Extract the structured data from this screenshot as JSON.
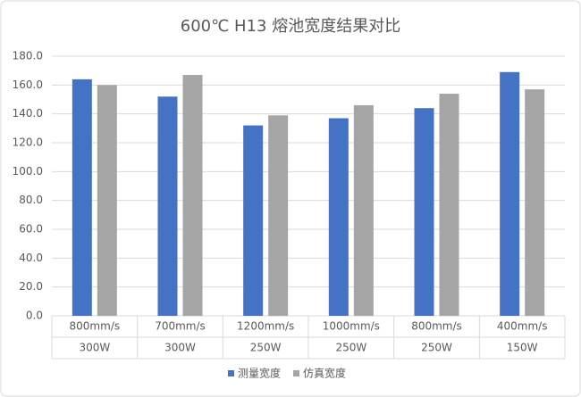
{
  "chart_data": {
    "type": "bar",
    "title": "600℃ H13 熔池宽度结果对比",
    "categories": [
      [
        "800mm/s",
        "300W"
      ],
      [
        "700mm/s",
        "300W"
      ],
      [
        "1200mm/s",
        "250W"
      ],
      [
        "1000mm/s",
        "250W"
      ],
      [
        "800mm/s",
        "250W"
      ],
      [
        "400mm/s",
        "150W"
      ]
    ],
    "series": [
      {
        "name": "测量宽度",
        "color": "#4472c4",
        "values": [
          164,
          152,
          132,
          137,
          144,
          169
        ]
      },
      {
        "name": "仿真宽度",
        "color": "#a5a5a5",
        "values": [
          160,
          167,
          139,
          146,
          154,
          157
        ]
      }
    ],
    "ylim": [
      0,
      180
    ],
    "yticks": [
      {
        "value": 0,
        "label": "0.0"
      },
      {
        "value": 20,
        "label": "20.0"
      },
      {
        "value": 40,
        "label": "40.0"
      },
      {
        "value": 60,
        "label": "60.0"
      },
      {
        "value": 80,
        "label": "80.0"
      },
      {
        "value": 100,
        "label": "100.0"
      },
      {
        "value": 120,
        "label": "120.0"
      },
      {
        "value": 140,
        "label": "140.0"
      },
      {
        "value": 160,
        "label": "160.0"
      },
      {
        "value": 180,
        "label": "180.0"
      }
    ],
    "grid": true,
    "legend": "bottom"
  }
}
